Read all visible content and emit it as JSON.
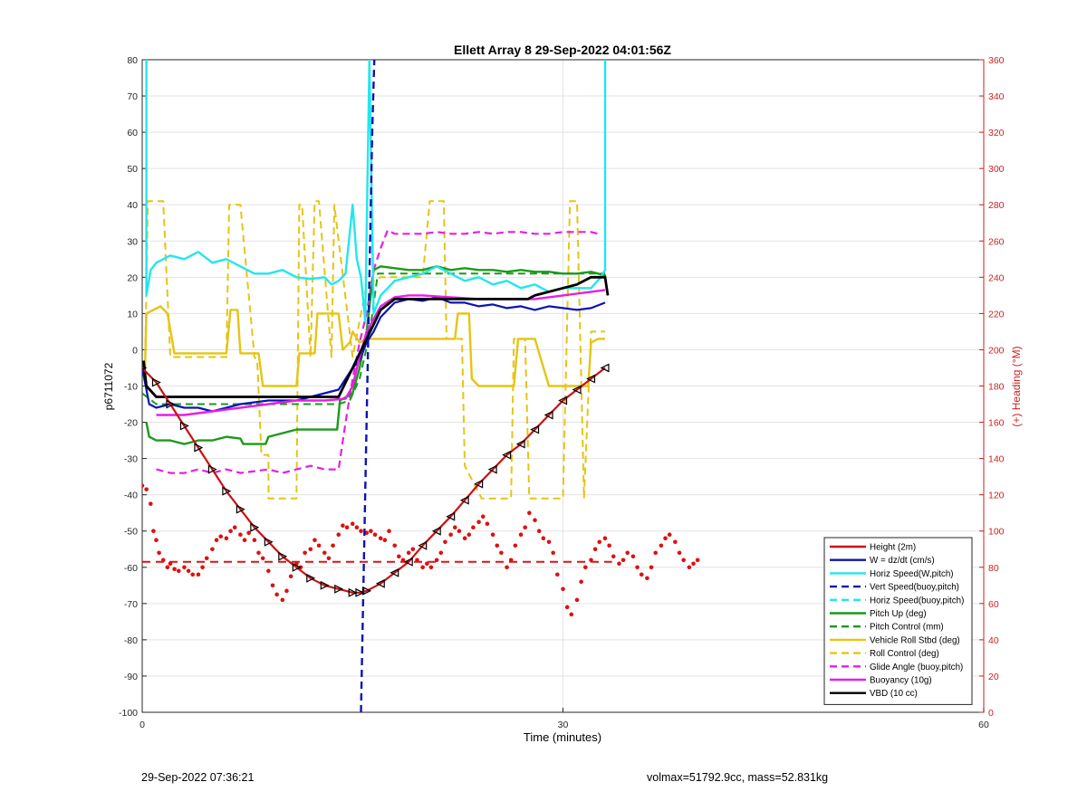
{
  "chart_data": {
    "type": "line",
    "title": "Ellett Array 8 29-Sep-2022 04:01:56Z",
    "xlabel": "Time (minutes)",
    "ylabel": "p6711072",
    "y2label": "(+) Heading (°M)",
    "xlim": [
      0,
      60
    ],
    "ylim": [
      -100,
      80
    ],
    "y2lim": [
      0,
      360
    ],
    "xticks": [
      0,
      30,
      60
    ],
    "yticks": [
      -100,
      -90,
      -80,
      -70,
      -60,
      -50,
      -40,
      -30,
      -20,
      -10,
      0,
      10,
      20,
      30,
      40,
      50,
      60,
      70,
      80
    ],
    "y2ticks": [
      0,
      20,
      40,
      60,
      80,
      100,
      120,
      140,
      160,
      180,
      200,
      220,
      240,
      260,
      280,
      300,
      320,
      340,
      360
    ],
    "grid": true,
    "legend_position": "bottom-right",
    "colors": {
      "height": "#cc1111",
      "w": "#0a14b4",
      "horiz": "#22e6ee",
      "pitch": "#1a9a1a",
      "roll": "#e6c414",
      "glide": "#e61ee6",
      "buoy": "#e61ee6",
      "vbd": "#000000",
      "heading": "#dd1111",
      "axis2": "#cc2020"
    },
    "legend": [
      {
        "label": "Height (2m)",
        "color": "#cc1111",
        "dash": false
      },
      {
        "label": "W = dz/dt (cm/s)",
        "color": "#0a14b4",
        "dash": false
      },
      {
        "label": "Horiz Speed(W,pitch)",
        "color": "#22e6ee",
        "dash": false
      },
      {
        "label": "Vert Speed(buoy,pitch)",
        "color": "#0a14b4",
        "dash": true
      },
      {
        "label": "Horiz Speed(buoy,pitch)",
        "color": "#22e6ee",
        "dash": true
      },
      {
        "label": "Pitch Up (deg)",
        "color": "#1a9a1a",
        "dash": false
      },
      {
        "label": "Pitch Control (mm)",
        "color": "#1a9a1a",
        "dash": true
      },
      {
        "label": "Vehicle Roll Stbd (deg)",
        "color": "#e6c414",
        "dash": false
      },
      {
        "label": "Roll Control (deg)",
        "color": "#e6c414",
        "dash": true
      },
      {
        "label": "Glide Angle (buoy,pitch)",
        "color": "#e61ee6",
        "dash": true
      },
      {
        "label": "Buoyancy (10g)",
        "color": "#e61ee6",
        "dash": false
      },
      {
        "label": "VBD (10 cc)",
        "color": "#000000",
        "dash": false
      }
    ],
    "series": {
      "height": {
        "x": [
          0,
          1,
          2,
          3,
          4,
          5,
          6,
          7,
          8,
          9,
          10,
          11,
          12,
          13,
          14,
          15,
          15.5,
          16,
          17,
          18,
          19,
          20,
          21,
          22,
          23,
          24,
          25,
          26,
          27,
          28,
          29,
          30,
          31,
          32,
          33
        ],
        "y": [
          -5,
          -9,
          -15,
          -21,
          -27,
          -33,
          -39,
          -44,
          -49,
          -53,
          -57,
          -60,
          -63,
          -65,
          -66,
          -67,
          -67,
          -66.5,
          -64.5,
          -61.5,
          -58.5,
          -54,
          -50,
          -46,
          -41.5,
          -37,
          -33,
          -29,
          -26,
          -22,
          -18,
          -14,
          -11,
          -8,
          -5
        ]
      },
      "w": {
        "x": [
          0,
          0.5,
          1,
          2,
          3,
          4,
          5,
          6,
          7,
          8,
          9,
          10,
          11,
          12,
          13,
          14,
          14.5,
          15,
          15.5,
          16,
          16.5,
          17,
          18,
          19,
          20,
          21,
          22,
          23,
          24,
          25,
          26,
          27,
          28,
          29,
          30,
          31,
          32,
          33
        ],
        "y": [
          -5,
          -15,
          -16,
          -15,
          -16,
          -16,
          -17,
          -16,
          -15,
          -14.5,
          -14,
          -14,
          -14,
          -13,
          -12,
          -11,
          -8,
          -5,
          -3,
          2,
          5,
          9,
          13,
          14,
          13.5,
          14.5,
          13,
          13,
          12,
          12.5,
          11.5,
          12,
          11,
          12,
          11.5,
          11,
          11.5,
          13
        ]
      },
      "horiz": {
        "x": [
          0.3,
          0.3,
          0.6,
          1,
          2,
          3,
          4,
          5,
          6,
          7,
          8,
          9,
          10,
          11,
          12,
          13,
          13.5,
          14,
          14.5,
          15,
          15.3,
          15.6,
          15.9,
          16.2,
          16.5,
          17,
          18,
          19,
          20,
          21,
          22,
          23,
          24,
          25,
          26,
          27,
          28,
          29,
          30,
          31,
          32,
          32.7,
          33,
          33
        ],
        "y": [
          80,
          15,
          22,
          24,
          26,
          25,
          27,
          24,
          25,
          23,
          21,
          21,
          22,
          20,
          19.5,
          20,
          18,
          19,
          21,
          40,
          25,
          20,
          8,
          80,
          10,
          15,
          19,
          20,
          21,
          23,
          21,
          19,
          20,
          18,
          19,
          17,
          18,
          16,
          17,
          17,
          17,
          20,
          22,
          80
        ]
      },
      "vert_buoy": {
        "x": [
          15.6,
          15.8,
          16.0,
          16.2,
          16.4,
          16.55
        ],
        "y": [
          -100,
          -60,
          -20,
          20,
          60,
          80
        ]
      },
      "pitch": {
        "x": [
          0.3,
          0.5,
          1,
          2,
          3,
          4,
          5,
          6,
          7,
          7.2,
          8.8,
          9,
          10,
          11,
          12,
          13,
          13.9,
          14.1,
          15,
          15.5,
          16,
          16.5,
          17,
          18,
          19,
          20,
          21,
          22,
          23,
          24,
          25,
          26,
          27,
          28,
          29,
          30,
          31,
          32,
          33,
          33
        ],
        "y": [
          -20,
          -24,
          -25,
          -25,
          -26,
          -25,
          -25,
          -24,
          -24.5,
          -26,
          -26,
          -24,
          -23,
          -22,
          -22,
          -22,
          -22,
          -14,
          -12,
          -5,
          5,
          22,
          23,
          22.5,
          22,
          22,
          23,
          22,
          22.5,
          22,
          22,
          21.5,
          22,
          21.5,
          21.5,
          21,
          21,
          21.5,
          20.5,
          20
        ]
      },
      "pitch_ctrl": {
        "x": [
          0,
          1,
          14,
          14.8,
          15.5,
          16.2,
          16.8,
          33
        ],
        "y": [
          -12,
          -15,
          -15,
          -14,
          -8,
          4,
          21,
          21
        ]
      },
      "roll": {
        "x": [
          0.2,
          0.3,
          1.3,
          1.8,
          2.3,
          4,
          5.5,
          6,
          6.3,
          6.8,
          7,
          8.3,
          8.6,
          9,
          11,
          11.2,
          12.3,
          12.5,
          14,
          14.3,
          14.8,
          15,
          15.5,
          16,
          17,
          18,
          20,
          21.5,
          22.3,
          22.5,
          23.3,
          23.5,
          24,
          25.5,
          26.3,
          26.5,
          26.8,
          28,
          29,
          30,
          30.8,
          31,
          31.8,
          32,
          32.5,
          33
        ],
        "y": [
          -5,
          10,
          12,
          10,
          -1,
          -1,
          -1,
          -1,
          11,
          11,
          -1,
          -1,
          -10,
          -10,
          -10,
          -1,
          -1,
          10,
          10,
          0,
          2,
          5,
          2,
          3,
          3,
          3,
          3,
          3,
          3,
          10,
          10,
          -8,
          -10,
          -10,
          -10,
          -10,
          3,
          3,
          -10,
          -10,
          -10,
          -10,
          -10,
          2,
          3,
          3
        ]
      },
      "roll_ctrl": {
        "x": [
          0.2,
          0.4,
          1.5,
          2,
          2.2,
          4,
          6,
          6.2,
          7,
          8,
          8.2,
          8.5,
          9,
          9,
          11,
          11.2,
          11.4,
          12,
          12.3,
          12.6,
          13.5,
          13.7,
          15,
          16,
          17,
          18,
          20,
          20.5,
          21.5,
          21.7,
          22.8,
          23,
          24.2,
          24.5,
          25.3,
          25.6,
          26.3,
          26.5,
          27.3,
          27.6,
          29,
          29.5,
          30,
          30.5,
          31,
          31.5,
          32,
          33
        ],
        "y": [
          -5,
          41,
          41,
          -2,
          -2,
          -2,
          -2,
          40,
          40,
          -2,
          -3,
          -29,
          -29,
          -41,
          -41,
          40,
          40,
          -2,
          41,
          41,
          -2,
          40,
          -2,
          18,
          20,
          20,
          20,
          41,
          41,
          3,
          3,
          -32,
          -41,
          -41,
          -41,
          -41,
          -41,
          3,
          3,
          -41,
          -41,
          -41,
          -41,
          41,
          41,
          -41,
          5,
          5
        ]
      },
      "glide": {
        "x": [
          1,
          2,
          3,
          4,
          5,
          6,
          7,
          8,
          9,
          10,
          11,
          12,
          13,
          14,
          14.5,
          15,
          15.5,
          16,
          16.5,
          17,
          17.5,
          18,
          18.5,
          19,
          20,
          21,
          22,
          23,
          24,
          25,
          26,
          27,
          28,
          29,
          30,
          31,
          32,
          32.5
        ],
        "y": [
          -33,
          -34,
          -34,
          -33,
          -34,
          -33,
          -34,
          -33.5,
          -33,
          -34,
          -33,
          -32,
          -33,
          -33,
          -20,
          -8,
          2,
          10,
          22,
          28,
          33,
          32,
          32,
          32,
          32,
          32.5,
          32,
          32,
          32.5,
          32,
          32.5,
          32.5,
          32,
          32,
          32.5,
          32.5,
          32.5,
          32
        ]
      },
      "buoy": {
        "x": [
          1,
          3,
          5,
          7,
          9,
          11,
          13,
          14.5,
          15,
          15.5,
          16,
          17,
          18,
          19,
          20,
          22,
          24,
          26,
          28,
          30,
          32,
          33
        ],
        "y": [
          -18,
          -18,
          -17,
          -16,
          -15,
          -14,
          -14,
          -13.5,
          -10,
          -2,
          5,
          12,
          14.5,
          15,
          15,
          14.5,
          14,
          14,
          14,
          15,
          16,
          16.5
        ]
      },
      "vbd": {
        "x": [
          0.1,
          0.3,
          1,
          2,
          4,
          6,
          8,
          10,
          12,
          14,
          14.5,
          15,
          15.5,
          16,
          16.5,
          17,
          18,
          20,
          22,
          24,
          26,
          27.5,
          28,
          29,
          30,
          31,
          32,
          33,
          33.2
        ],
        "y": [
          -3,
          -10,
          -13,
          -13,
          -13,
          -13,
          -13,
          -13,
          -13,
          -13,
          -9,
          -5,
          -1,
          3,
          7,
          11,
          14,
          14,
          14,
          14,
          14,
          14,
          15,
          16,
          17,
          18,
          20,
          20,
          15
        ]
      },
      "heading_mean": 83,
      "heading": [
        [
          0,
          125
        ],
        [
          0.3,
          123
        ],
        [
          0.6,
          115
        ],
        [
          0.8,
          100
        ],
        [
          1,
          95
        ],
        [
          1.2,
          88
        ],
        [
          1.5,
          84
        ],
        [
          1.8,
          80
        ],
        [
          2,
          82
        ],
        [
          2.3,
          79
        ],
        [
          2.6,
          78
        ],
        [
          3,
          80
        ],
        [
          3.3,
          78
        ],
        [
          3.6,
          76
        ],
        [
          4,
          76
        ],
        [
          4.3,
          80
        ],
        [
          4.6,
          85
        ],
        [
          5,
          90
        ],
        [
          5.3,
          95
        ],
        [
          5.6,
          97
        ],
        [
          6,
          96
        ],
        [
          6.3,
          100
        ],
        [
          6.6,
          102
        ],
        [
          7,
          98
        ],
        [
          7.3,
          95
        ],
        [
          7.6,
          99
        ],
        [
          8,
          95
        ],
        [
          8.3,
          88
        ],
        [
          8.6,
          85
        ],
        [
          9,
          78
        ],
        [
          9.3,
          70
        ],
        [
          9.6,
          65
        ],
        [
          10,
          62
        ],
        [
          10.3,
          67
        ],
        [
          10.6,
          75
        ],
        [
          11,
          82
        ],
        [
          11.3,
          80
        ],
        [
          11.6,
          88
        ],
        [
          12,
          90
        ],
        [
          12.3,
          95
        ],
        [
          12.6,
          92
        ],
        [
          13,
          88
        ],
        [
          13.3,
          85
        ],
        [
          13.6,
          92
        ],
        [
          14,
          98
        ],
        [
          14.3,
          103
        ],
        [
          14.6,
          102
        ],
        [
          15,
          104
        ],
        [
          15.3,
          102
        ],
        [
          15.6,
          100
        ],
        [
          16,
          99
        ],
        [
          16.3,
          100
        ],
        [
          16.6,
          98
        ],
        [
          17,
          96
        ],
        [
          17.3,
          95
        ],
        [
          17.6,
          100
        ],
        [
          18,
          92
        ],
        [
          18.3,
          86
        ],
        [
          18.6,
          84
        ],
        [
          19,
          88
        ],
        [
          19.3,
          90
        ],
        [
          19.6,
          84
        ],
        [
          20,
          80
        ],
        [
          20.3,
          82
        ],
        [
          20.6,
          80
        ],
        [
          21,
          84
        ],
        [
          21.3,
          88
        ],
        [
          21.6,
          94
        ],
        [
          22,
          98
        ],
        [
          22.3,
          102
        ],
        [
          22.6,
          100
        ],
        [
          23,
          96
        ],
        [
          23.3,
          98
        ],
        [
          23.6,
          102
        ],
        [
          24,
          105
        ],
        [
          24.3,
          108
        ],
        [
          24.6,
          104
        ],
        [
          25,
          98
        ],
        [
          25.3,
          92
        ],
        [
          25.6,
          88
        ],
        [
          26,
          80
        ],
        [
          26.3,
          84
        ],
        [
          26.6,
          92
        ],
        [
          27,
          98
        ],
        [
          27.3,
          102
        ],
        [
          27.6,
          110
        ],
        [
          28,
          106
        ],
        [
          28.3,
          100
        ],
        [
          28.6,
          96
        ],
        [
          29,
          94
        ],
        [
          29.3,
          88
        ],
        [
          29.6,
          76
        ],
        [
          30,
          68
        ],
        [
          30.3,
          58
        ],
        [
          30.6,
          54
        ],
        [
          31,
          62
        ],
        [
          31.3,
          72
        ],
        [
          31.6,
          80
        ],
        [
          32,
          84
        ],
        [
          32.3,
          90
        ],
        [
          32.6,
          94
        ],
        [
          33,
          96
        ],
        [
          33.3,
          92
        ],
        [
          33.6,
          86
        ],
        [
          34,
          82
        ],
        [
          34.3,
          84
        ],
        [
          34.6,
          88
        ],
        [
          35,
          86
        ],
        [
          35.3,
          80
        ],
        [
          35.6,
          76
        ],
        [
          36,
          74
        ],
        [
          36.3,
          80
        ],
        [
          36.6,
          88
        ],
        [
          37,
          92
        ],
        [
          37.3,
          96
        ],
        [
          37.6,
          98
        ],
        [
          38,
          94
        ],
        [
          38.3,
          88
        ],
        [
          38.6,
          84
        ],
        [
          39,
          80
        ],
        [
          39.3,
          82
        ],
        [
          39.6,
          84
        ]
      ]
    }
  },
  "footer": {
    "left": "29-Sep-2022 07:36:21",
    "right": "volmax=51792.9cc, mass=52.831kg"
  }
}
